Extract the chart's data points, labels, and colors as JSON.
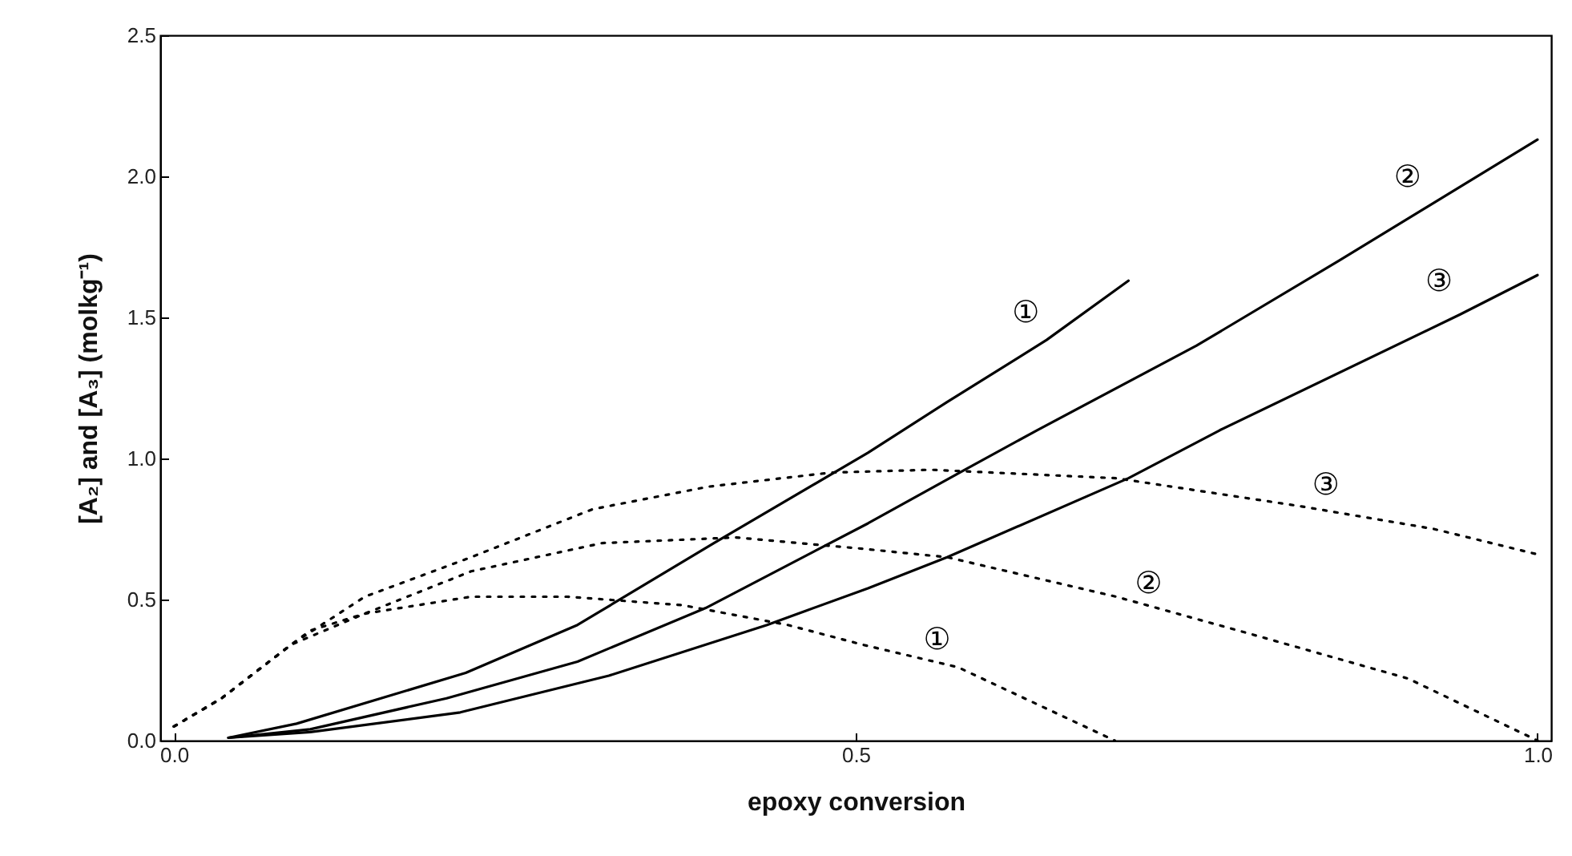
{
  "chart_data": {
    "type": "line",
    "xlabel": "epoxy conversion",
    "ylabel": "[A₂] and [A₃] (molkg⁻¹)",
    "xlim": [
      -0.01,
      1.01
    ],
    "xticks": [
      {
        "value": 0,
        "label": "0.0"
      },
      {
        "value": 0.5,
        "label": "0.5"
      },
      {
        "value": 1,
        "label": "1.0"
      }
    ],
    "ylim": [
      0,
      2.5
    ],
    "yticks": [
      {
        "value": 0,
        "label": "0.0"
      },
      {
        "value": 0.5,
        "label": "0.5"
      },
      {
        "value": 1,
        "label": "1.0"
      },
      {
        "value": 1.5,
        "label": "1.5"
      },
      {
        "value": 2,
        "label": "2.0"
      },
      {
        "value": 2.5,
        "label": "2.5"
      }
    ],
    "grid": false,
    "series": [
      {
        "color": "#000000",
        "line_style": "solid",
        "x": [
          0.04,
          0.09,
          0.214,
          0.296,
          0.396,
          0.509,
          0.567,
          0.64,
          0.7
        ],
        "values": [
          0.01,
          0.06,
          0.24,
          0.41,
          0.7,
          1.02,
          1.2,
          1.42,
          1.63
        ]
      },
      {
        "color": "#000000",
        "line_style": "solid",
        "x": [
          0.04,
          0.1,
          0.2,
          0.296,
          0.39,
          0.509,
          0.58,
          0.633,
          0.75,
          0.854,
          1.0
        ],
        "values": [
          0.01,
          0.04,
          0.15,
          0.28,
          0.47,
          0.77,
          0.96,
          1.1,
          1.4,
          1.7,
          2.13
        ]
      },
      {
        "color": "#000000",
        "line_style": "solid",
        "x": [
          0.04,
          0.1,
          0.21,
          0.319,
          0.435,
          0.509,
          0.567,
          0.7,
          0.767,
          0.943,
          1.0
        ],
        "values": [
          0.01,
          0.03,
          0.1,
          0.23,
          0.41,
          0.54,
          0.65,
          0.93,
          1.1,
          1.51,
          1.65
        ]
      },
      {
        "color": "#000000",
        "line_style": "dotted",
        "x": [
          0,
          0.035,
          0.086,
          0.1,
          0.14,
          0.218,
          0.288,
          0.373,
          0.45,
          0.505,
          0.575,
          0.69
        ],
        "values": [
          0.05,
          0.15,
          0.34,
          0.39,
          0.45,
          0.51,
          0.51,
          0.48,
          0.41,
          0.34,
          0.26,
          0
        ]
      },
      {
        "color": "#000000",
        "line_style": "dotted",
        "x": [
          0,
          0.035,
          0.086,
          0.14,
          0.218,
          0.314,
          0.412,
          0.505,
          0.567,
          0.691,
          0.788,
          0.905,
          1.0
        ],
        "values": [
          0.05,
          0.15,
          0.34,
          0.45,
          0.6,
          0.7,
          0.72,
          0.68,
          0.65,
          0.51,
          0.38,
          0.22,
          0
        ]
      },
      {
        "color": "#000000",
        "line_style": "dotted",
        "x": [
          0,
          0.035,
          0.086,
          0.14,
          0.218,
          0.307,
          0.392,
          0.482,
          0.555,
          0.691,
          0.827,
          0.924,
          1.0
        ],
        "values": [
          0.05,
          0.15,
          0.34,
          0.51,
          0.65,
          0.82,
          0.9,
          0.95,
          0.96,
          0.93,
          0.83,
          0.75,
          0.66
        ]
      }
    ],
    "annotations": [
      {
        "text": "①",
        "x": 0.64,
        "y": 1.42
      },
      {
        "text": "②",
        "x": 0.92,
        "y": 1.9
      },
      {
        "text": "③",
        "x": 0.943,
        "y": 1.53
      },
      {
        "text": "①",
        "x": 0.575,
        "y": 0.26
      },
      {
        "text": "②",
        "x": 0.73,
        "y": 0.46
      },
      {
        "text": "③",
        "x": 0.86,
        "y": 0.81
      }
    ]
  }
}
